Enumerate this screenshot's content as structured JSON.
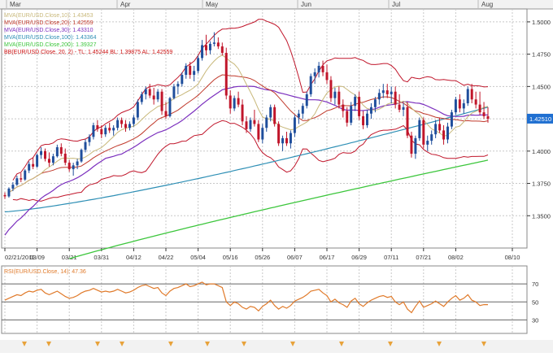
{
  "top_months": [
    "Mar",
    "Apr",
    "May",
    "Jun",
    "Jul",
    "Aug"
  ],
  "indicators": [
    {
      "text": "MVA(EUR/USD.Close,10): 1.43453",
      "color": "#c8b87a"
    },
    {
      "text": "MVA(EUR/USD.Close,20): 1.42559",
      "color": "#c0392b"
    },
    {
      "text": "MVA(EUR/USD.Close,30): 1.43310",
      "color": "#7b2fbe"
    },
    {
      "text": "MVA(EUR/USD.Close,100): 1.43364",
      "color": "#2e8fb5"
    },
    {
      "text": "MVA(EUR/USD.Close,200): 1.39327",
      "color": "#3cc63c"
    },
    {
      "text": "BB(EUR/USD.Close, 20, 2) - TL: 1.45244  BL: 1.39875  AL: 1.42559",
      "color": "#cc1111"
    }
  ],
  "price_label": "1.42510",
  "rsi_label": "RSI(EUR/USD.Close, 14): 47.36",
  "colors": {
    "up": "#1f4e9c",
    "down": "#c0152a",
    "bb": "#c0152a",
    "grid": "#c8c8c8",
    "axis": "#333333",
    "rsi": "#e07a2a"
  },
  "chart_data": {
    "type": "line",
    "subtype": "candlestick",
    "x_ticks": [
      "02/21/2011",
      "03/09",
      "03/21",
      "03/31",
      "04/12",
      "04/22",
      "05/04",
      "05/16",
      "05/26",
      "06/07",
      "06/17",
      "06/29",
      "07/11",
      "07/21",
      "08/02",
      "08/10"
    ],
    "y_ticks": [
      1.35,
      1.375,
      1.4,
      1.425,
      1.45,
      1.475,
      1.5
    ],
    "ylim": [
      1.325,
      1.51
    ],
    "rsi_ticks": [
      30,
      50,
      70
    ],
    "rsi_ylim": [
      15,
      90
    ],
    "grid": true,
    "candles": [
      [
        1.366,
        1.368,
        1.363,
        1.365
      ],
      [
        1.365,
        1.372,
        1.364,
        1.371
      ],
      [
        1.371,
        1.376,
        1.369,
        1.374
      ],
      [
        1.374,
        1.381,
        1.373,
        1.379
      ],
      [
        1.379,
        1.383,
        1.376,
        1.378
      ],
      [
        1.378,
        1.386,
        1.377,
        1.385
      ],
      [
        1.385,
        1.392,
        1.383,
        1.39
      ],
      [
        1.39,
        1.395,
        1.386,
        1.388
      ],
      [
        1.388,
        1.398,
        1.387,
        1.397
      ],
      [
        1.397,
        1.403,
        1.394,
        1.4
      ],
      [
        1.4,
        1.402,
        1.392,
        1.394
      ],
      [
        1.394,
        1.399,
        1.388,
        1.391
      ],
      [
        1.391,
        1.398,
        1.389,
        1.396
      ],
      [
        1.396,
        1.405,
        1.395,
        1.403
      ],
      [
        1.403,
        1.406,
        1.396,
        1.398
      ],
      [
        1.398,
        1.402,
        1.389,
        1.391
      ],
      [
        1.391,
        1.393,
        1.384,
        1.386
      ],
      [
        1.386,
        1.391,
        1.381,
        1.389
      ],
      [
        1.389,
        1.394,
        1.386,
        1.392
      ],
      [
        1.392,
        1.402,
        1.391,
        1.401
      ],
      [
        1.401,
        1.409,
        1.399,
        1.407
      ],
      [
        1.407,
        1.413,
        1.404,
        1.411
      ],
      [
        1.411,
        1.422,
        1.409,
        1.42
      ],
      [
        1.42,
        1.424,
        1.415,
        1.417
      ],
      [
        1.417,
        1.42,
        1.41,
        1.413
      ],
      [
        1.413,
        1.42,
        1.411,
        1.418
      ],
      [
        1.418,
        1.422,
        1.414,
        1.416
      ],
      [
        1.416,
        1.42,
        1.412,
        1.418
      ],
      [
        1.418,
        1.426,
        1.416,
        1.424
      ],
      [
        1.424,
        1.426,
        1.418,
        1.421
      ],
      [
        1.421,
        1.424,
        1.415,
        1.418
      ],
      [
        1.418,
        1.423,
        1.416,
        1.421
      ],
      [
        1.421,
        1.428,
        1.419,
        1.426
      ],
      [
        1.426,
        1.44,
        1.424,
        1.438
      ],
      [
        1.438,
        1.446,
        1.436,
        1.444
      ],
      [
        1.444,
        1.45,
        1.44,
        1.448
      ],
      [
        1.448,
        1.452,
        1.441,
        1.443
      ],
      [
        1.443,
        1.449,
        1.436,
        1.44
      ],
      [
        1.44,
        1.448,
        1.438,
        1.446
      ],
      [
        1.446,
        1.448,
        1.428,
        1.431
      ],
      [
        1.431,
        1.438,
        1.425,
        1.427
      ],
      [
        1.427,
        1.442,
        1.426,
        1.441
      ],
      [
        1.441,
        1.452,
        1.44,
        1.45
      ],
      [
        1.45,
        1.454,
        1.444,
        1.452
      ],
      [
        1.452,
        1.461,
        1.45,
        1.459
      ],
      [
        1.459,
        1.468,
        1.456,
        1.466
      ],
      [
        1.466,
        1.469,
        1.456,
        1.459
      ],
      [
        1.459,
        1.466,
        1.454,
        1.462
      ],
      [
        1.462,
        1.474,
        1.46,
        1.472
      ],
      [
        1.472,
        1.486,
        1.47,
        1.482
      ],
      [
        1.482,
        1.49,
        1.474,
        1.478
      ],
      [
        1.478,
        1.485,
        1.475,
        1.483
      ],
      [
        1.483,
        1.492,
        1.481,
        1.484
      ],
      [
        1.484,
        1.488,
        1.479,
        1.481
      ],
      [
        1.481,
        1.484,
        1.474,
        1.476
      ],
      [
        1.476,
        1.48,
        1.44,
        1.443
      ],
      [
        1.443,
        1.447,
        1.429,
        1.433
      ],
      [
        1.433,
        1.443,
        1.431,
        1.441
      ],
      [
        1.441,
        1.446,
        1.434,
        1.436
      ],
      [
        1.436,
        1.44,
        1.42,
        1.423
      ],
      [
        1.423,
        1.427,
        1.414,
        1.417
      ],
      [
        1.417,
        1.426,
        1.415,
        1.424
      ],
      [
        1.424,
        1.432,
        1.419,
        1.421
      ],
      [
        1.421,
        1.424,
        1.407,
        1.409
      ],
      [
        1.409,
        1.421,
        1.406,
        1.418
      ],
      [
        1.418,
        1.428,
        1.415,
        1.426
      ],
      [
        1.426,
        1.436,
        1.423,
        1.434
      ],
      [
        1.434,
        1.436,
        1.419,
        1.421
      ],
      [
        1.421,
        1.423,
        1.404,
        1.406
      ],
      [
        1.406,
        1.412,
        1.4,
        1.41
      ],
      [
        1.41,
        1.415,
        1.404,
        1.406
      ],
      [
        1.406,
        1.416,
        1.402,
        1.414
      ],
      [
        1.414,
        1.428,
        1.411,
        1.426
      ],
      [
        1.426,
        1.432,
        1.421,
        1.429
      ],
      [
        1.429,
        1.437,
        1.425,
        1.435
      ],
      [
        1.435,
        1.446,
        1.433,
        1.444
      ],
      [
        1.444,
        1.46,
        1.442,
        1.458
      ],
      [
        1.458,
        1.464,
        1.452,
        1.461
      ],
      [
        1.461,
        1.469,
        1.457,
        1.466
      ],
      [
        1.466,
        1.47,
        1.458,
        1.461
      ],
      [
        1.461,
        1.467,
        1.452,
        1.455
      ],
      [
        1.455,
        1.458,
        1.438,
        1.441
      ],
      [
        1.441,
        1.449,
        1.436,
        1.446
      ],
      [
        1.446,
        1.45,
        1.433,
        1.436
      ],
      [
        1.436,
        1.44,
        1.426,
        1.431
      ],
      [
        1.431,
        1.434,
        1.419,
        1.422
      ],
      [
        1.422,
        1.438,
        1.42,
        1.435
      ],
      [
        1.435,
        1.444,
        1.431,
        1.442
      ],
      [
        1.442,
        1.446,
        1.424,
        1.427
      ],
      [
        1.427,
        1.431,
        1.417,
        1.42
      ],
      [
        1.42,
        1.432,
        1.418,
        1.429
      ],
      [
        1.429,
        1.437,
        1.425,
        1.434
      ],
      [
        1.434,
        1.442,
        1.43,
        1.44
      ],
      [
        1.44,
        1.448,
        1.436,
        1.445
      ],
      [
        1.445,
        1.452,
        1.441,
        1.447
      ],
      [
        1.447,
        1.452,
        1.441,
        1.444
      ],
      [
        1.444,
        1.45,
        1.437,
        1.446
      ],
      [
        1.446,
        1.45,
        1.433,
        1.436
      ],
      [
        1.436,
        1.444,
        1.43,
        1.432
      ],
      [
        1.432,
        1.437,
        1.427,
        1.434
      ],
      [
        1.434,
        1.438,
        1.41,
        1.412
      ],
      [
        1.412,
        1.415,
        1.395,
        1.398
      ],
      [
        1.398,
        1.412,
        1.394,
        1.41
      ],
      [
        1.41,
        1.426,
        1.408,
        1.424
      ],
      [
        1.424,
        1.426,
        1.402,
        1.405
      ],
      [
        1.405,
        1.412,
        1.4,
        1.408
      ],
      [
        1.408,
        1.416,
        1.405,
        1.413
      ],
      [
        1.413,
        1.424,
        1.41,
        1.421
      ],
      [
        1.421,
        1.426,
        1.414,
        1.416
      ],
      [
        1.416,
        1.42,
        1.405,
        1.409
      ],
      [
        1.409,
        1.422,
        1.406,
        1.419
      ],
      [
        1.419,
        1.432,
        1.417,
        1.43
      ],
      [
        1.43,
        1.442,
        1.428,
        1.44
      ],
      [
        1.44,
        1.444,
        1.43,
        1.433
      ],
      [
        1.433,
        1.44,
        1.429,
        1.437
      ],
      [
        1.437,
        1.45,
        1.435,
        1.448
      ],
      [
        1.448,
        1.452,
        1.437,
        1.44
      ],
      [
        1.44,
        1.446,
        1.433,
        1.436
      ],
      [
        1.436,
        1.446,
        1.428,
        1.43
      ],
      [
        1.43,
        1.438,
        1.425,
        1.427
      ],
      [
        1.427,
        1.434,
        1.422,
        1.425
      ]
    ],
    "rsi": [
      52,
      54,
      56,
      58,
      57,
      60,
      62,
      61,
      63,
      64,
      60,
      58,
      60,
      62,
      59,
      56,
      54,
      55,
      57,
      60,
      62,
      63,
      65,
      63,
      61,
      62,
      61,
      62,
      64,
      62,
      60,
      61,
      63,
      66,
      68,
      69,
      67,
      65,
      66,
      60,
      57,
      62,
      65,
      66,
      68,
      70,
      67,
      68,
      70,
      72,
      69,
      70,
      70,
      68,
      66,
      50,
      46,
      50,
      48,
      44,
      42,
      45,
      44,
      40,
      45,
      48,
      52,
      46,
      42,
      45,
      43,
      46,
      51,
      53,
      55,
      58,
      62,
      63,
      64,
      60,
      57,
      50,
      53,
      49,
      47,
      44,
      51,
      54,
      48,
      45,
      49,
      52,
      54,
      56,
      57,
      55,
      56,
      50,
      47,
      50,
      42,
      38,
      45,
      51,
      44,
      46,
      48,
      51,
      48,
      45,
      50,
      54,
      57,
      52,
      54,
      58,
      52,
      50,
      46,
      47,
      47
    ]
  }
}
